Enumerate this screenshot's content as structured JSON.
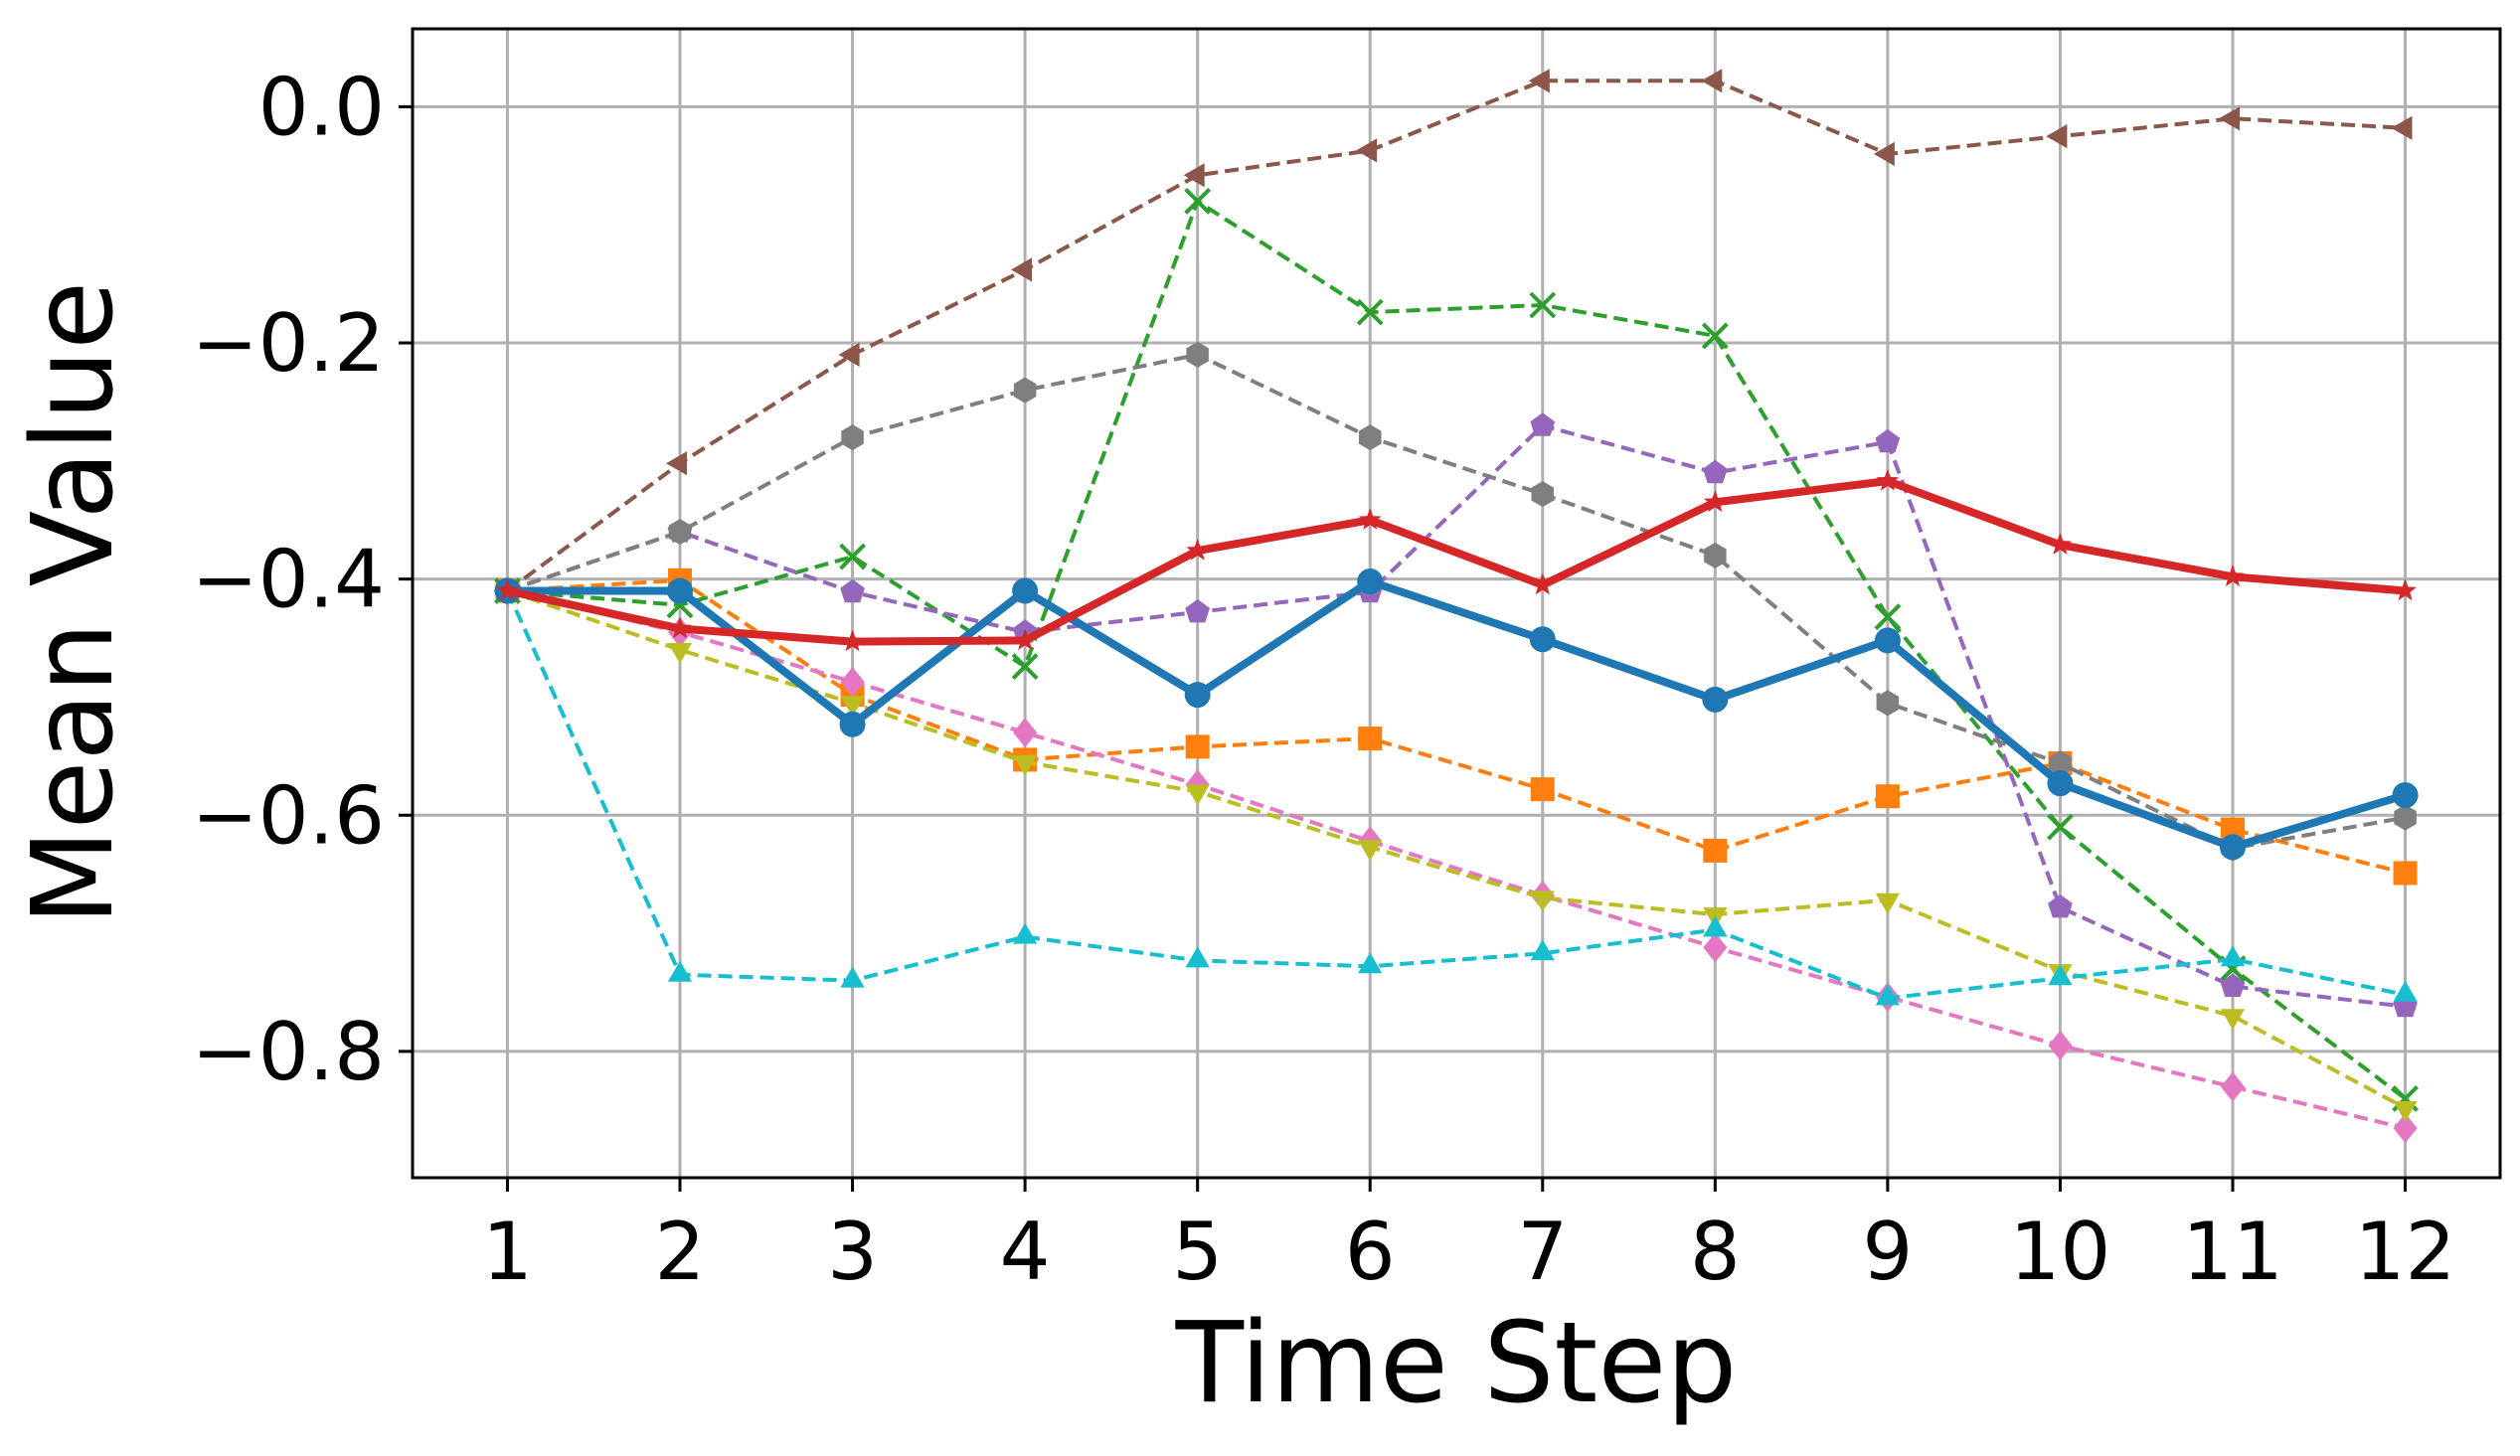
{
  "chart_data": {
    "type": "line",
    "title": "",
    "xlabel": "Time Step",
    "ylabel": "Mean Value",
    "x": [
      1,
      2,
      3,
      4,
      5,
      6,
      7,
      8,
      9,
      10,
      11,
      12
    ],
    "xticks": [
      "1",
      "2",
      "3",
      "4",
      "5",
      "6",
      "7",
      "8",
      "9",
      "10",
      "11",
      "12"
    ],
    "yticks": [
      0.0,
      -0.2,
      -0.4,
      -0.6,
      -0.8
    ],
    "ytick_labels": [
      "0.0",
      "−0.2",
      "−0.4",
      "−0.6",
      "−0.8"
    ],
    "xlim": [
      0.45,
      12.55
    ],
    "ylim": [
      -0.907,
      0.066
    ],
    "grid": true,
    "legend": "none",
    "series": [
      {
        "color": "#1f77b4",
        "marker": "circle",
        "style": "solid",
        "bold": true,
        "values": [
          -0.41,
          -0.41,
          -0.523,
          -0.41,
          -0.498,
          -0.402,
          -0.451,
          -0.502,
          -0.452,
          -0.573,
          -0.627,
          -0.583
        ]
      },
      {
        "color": "#d62728",
        "marker": "star",
        "style": "solid",
        "bold": true,
        "values": [
          -0.41,
          -0.442,
          -0.453,
          -0.452,
          -0.376,
          -0.35,
          -0.405,
          -0.335,
          -0.317,
          -0.371,
          -0.398,
          -0.41
        ]
      },
      {
        "color": "#ff7f0e",
        "marker": "square",
        "style": "dashed",
        "values": [
          -0.41,
          -0.401,
          -0.498,
          -0.553,
          -0.542,
          -0.535,
          -0.578,
          -0.63,
          -0.584,
          -0.556,
          -0.612,
          -0.649
        ]
      },
      {
        "color": "#2ca02c",
        "marker": "x",
        "style": "dashed",
        "values": [
          -0.41,
          -0.422,
          -0.381,
          -0.474,
          -0.08,
          -0.174,
          -0.168,
          -0.194,
          -0.432,
          -0.61,
          -0.73,
          -0.84
        ]
      },
      {
        "color": "#9467bd",
        "marker": "pentagon",
        "style": "dashed",
        "values": [
          -0.41,
          -0.36,
          -0.411,
          -0.445,
          -0.428,
          -0.411,
          -0.27,
          -0.31,
          -0.284,
          -0.678,
          -0.745,
          -0.762
        ]
      },
      {
        "color": "#8c564b",
        "marker": "triangle-left",
        "style": "dashed",
        "values": [
          -0.41,
          -0.302,
          -0.21,
          -0.138,
          -0.058,
          -0.037,
          0.022,
          0.022,
          -0.04,
          -0.025,
          -0.01,
          -0.018
        ]
      },
      {
        "color": "#e377c2",
        "marker": "diamond",
        "style": "dashed",
        "values": [
          -0.41,
          -0.445,
          -0.487,
          -0.53,
          -0.574,
          -0.622,
          -0.668,
          -0.712,
          -0.754,
          -0.795,
          -0.83,
          -0.865
        ]
      },
      {
        "color": "#7f7f7f",
        "marker": "hexagon",
        "style": "dashed",
        "values": [
          -0.41,
          -0.36,
          -0.28,
          -0.24,
          -0.21,
          -0.28,
          -0.328,
          -0.38,
          -0.505,
          -0.556,
          -0.628,
          -0.602
        ]
      },
      {
        "color": "#bcbd22",
        "marker": "triangle-down",
        "style": "dashed",
        "values": [
          -0.41,
          -0.46,
          -0.505,
          -0.555,
          -0.58,
          -0.627,
          -0.67,
          -0.684,
          -0.672,
          -0.732,
          -0.77,
          -0.848
        ]
      },
      {
        "color": "#17becf",
        "marker": "triangle-up",
        "style": "dashed",
        "values": [
          -0.41,
          -0.735,
          -0.74,
          -0.703,
          -0.723,
          -0.728,
          -0.717,
          -0.697,
          -0.755,
          -0.738,
          -0.722,
          -0.752
        ]
      }
    ]
  }
}
